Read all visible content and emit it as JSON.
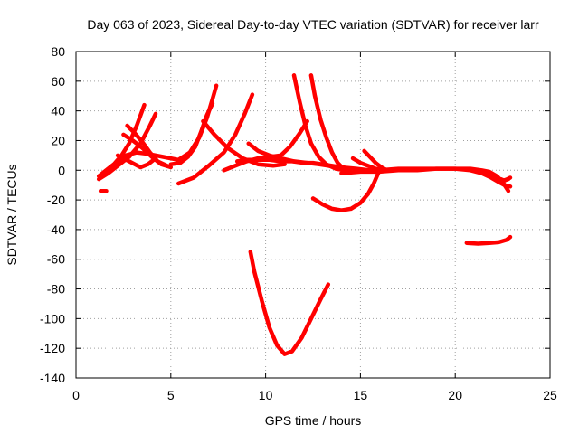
{
  "chart_data": {
    "type": "line",
    "title": "Day 063 of 2023, Sidereal Day-to-day VTEC variation (SDTVAR) for receiver larr",
    "xlabel": "GPS time / hours",
    "ylabel": "SDTVAR / TECUs",
    "xlim": [
      0,
      25
    ],
    "ylim": [
      -140,
      80
    ],
    "xticks": [
      0,
      5,
      10,
      15,
      20,
      25
    ],
    "yticks": [
      -140,
      -120,
      -100,
      -80,
      -60,
      -40,
      -20,
      0,
      20,
      40,
      60,
      80
    ],
    "grid": true,
    "color": "#ff0000",
    "series": [
      {
        "x": [
          1.3,
          1.6
        ],
        "y": [
          -14,
          -14
        ]
      },
      {
        "x": [
          1.2,
          1.6,
          2.0,
          2.4,
          2.8,
          3.2,
          3.6
        ],
        "y": [
          -4,
          0,
          4,
          10,
          18,
          30,
          44
        ]
      },
      {
        "x": [
          1.2,
          1.7,
          2.2,
          2.8,
          3.4,
          3.9,
          4.2
        ],
        "y": [
          -6,
          -2,
          3,
          9,
          18,
          30,
          38
        ]
      },
      {
        "x": [
          1.4,
          2.0,
          2.6,
          3.2,
          3.8,
          4.6,
          5.4,
          6.0,
          6.5,
          6.9,
          7.2,
          7.4
        ],
        "y": [
          -2,
          4,
          10,
          12,
          11,
          9,
          7,
          12,
          22,
          35,
          48,
          57
        ]
      },
      {
        "x": [
          2.5,
          3.0,
          3.5,
          4.0,
          4.5,
          5.0
        ],
        "y": [
          24,
          20,
          15,
          9,
          4,
          2
        ]
      },
      {
        "x": [
          2.7,
          3.1,
          3.5,
          3.9,
          4.3,
          4.8
        ],
        "y": [
          30,
          25,
          19,
          12,
          6,
          3
        ]
      },
      {
        "x": [
          2.2,
          2.8,
          3.4,
          3.8,
          4.2
        ],
        "y": [
          10,
          6,
          2,
          4,
          8
        ]
      },
      {
        "x": [
          5.4,
          6.2,
          7.0,
          7.8,
          8.4,
          8.9,
          9.3
        ],
        "y": [
          -9,
          -5,
          3,
          12,
          24,
          38,
          51
        ]
      },
      {
        "x": [
          5.0,
          5.5,
          5.9,
          6.3,
          6.6,
          6.9,
          7.2
        ],
        "y": [
          4,
          5,
          9,
          16,
          26,
          37,
          45
        ]
      },
      {
        "x": [
          6.7,
          7.3,
          8.0,
          8.8,
          9.6,
          10.4,
          11.0
        ],
        "y": [
          33,
          24,
          15,
          8,
          4,
          3,
          4
        ]
      },
      {
        "x": [
          7.8,
          8.4,
          9.0,
          9.6,
          10.2,
          10.8,
          11.3,
          11.8,
          12.2
        ],
        "y": [
          0,
          3,
          6,
          8,
          9,
          10,
          16,
          25,
          33
        ]
      },
      {
        "x": [
          8.5,
          9.0,
          9.6,
          10.2,
          10.8,
          11.4,
          12.0,
          12.5,
          13.0,
          13.5,
          14.0,
          14.8,
          15.5,
          16.3,
          17.2
        ],
        "y": [
          6,
          7,
          7,
          7,
          6,
          6,
          5,
          5,
          4,
          3,
          2,
          1,
          0,
          0,
          0
        ]
      },
      {
        "x": [
          9.1,
          9.6,
          10.2,
          10.8,
          11.5,
          12.2,
          12.8,
          13.3,
          13.7
        ],
        "y": [
          18,
          13,
          10,
          8,
          6,
          5,
          4,
          3,
          2
        ]
      },
      {
        "x": [
          11.5,
          11.8,
          12.1,
          12.4,
          12.8,
          13.2,
          13.7,
          14.2
        ],
        "y": [
          64,
          46,
          30,
          18,
          9,
          4,
          1,
          0
        ]
      },
      {
        "x": [
          12.4,
          12.6,
          12.9,
          13.2,
          13.5,
          13.8,
          14.1,
          14.5
        ],
        "y": [
          64,
          50,
          34,
          22,
          12,
          5,
          1,
          -1
        ]
      },
      {
        "x": [
          9.2,
          9.4,
          9.8,
          10.2,
          10.6,
          11.0,
          11.4,
          11.9,
          12.4,
          12.9,
          13.3
        ],
        "y": [
          -55,
          -68,
          -88,
          -106,
          -118,
          -124,
          -122,
          -113,
          -100,
          -87,
          -77
        ]
      },
      {
        "x": [
          12.5,
          13.0,
          13.5,
          14.0,
          14.5,
          15.0,
          15.4,
          15.7,
          15.9,
          16.0
        ],
        "y": [
          -19,
          -23,
          -26,
          -27,
          -26,
          -22,
          -16,
          -9,
          -3,
          0
        ]
      },
      {
        "x": [
          15.2,
          15.5,
          15.8,
          16.1,
          16.4
        ],
        "y": [
          13,
          9,
          5,
          2,
          0
        ]
      },
      {
        "x": [
          14.6,
          15.0,
          15.4,
          15.8,
          16.2
        ],
        "y": [
          8,
          5,
          3,
          1,
          0
        ]
      },
      {
        "x": [
          14.0,
          15.0,
          16.0,
          17.0,
          18.0,
          19.0,
          20.0,
          20.8,
          21.4,
          21.8,
          22.2,
          22.5,
          22.8
        ],
        "y": [
          -2,
          -1,
          -1,
          0,
          0,
          1,
          1,
          1,
          0,
          -1,
          -4,
          -8,
          -14
        ]
      },
      {
        "x": [
          16.0,
          17.0,
          18.0,
          19.0,
          20.0,
          20.8,
          21.4,
          21.9,
          22.3,
          22.6,
          22.9
        ],
        "y": [
          0,
          1,
          1,
          1,
          1,
          0,
          -2,
          -5,
          -8,
          -10,
          -11
        ]
      },
      {
        "x": [
          21.5,
          21.9,
          22.2,
          22.5,
          22.8
        ],
        "y": [
          -2,
          -4,
          -6,
          -7,
          -6
        ]
      },
      {
        "x": [
          22.4,
          22.6,
          22.9
        ],
        "y": [
          -6,
          -7,
          -5
        ]
      },
      {
        "x": [
          20.6,
          21.2,
          21.8,
          22.3,
          22.7,
          22.9
        ],
        "y": [
          -49,
          -49.5,
          -49,
          -48.5,
          -47,
          -45
        ]
      }
    ]
  }
}
